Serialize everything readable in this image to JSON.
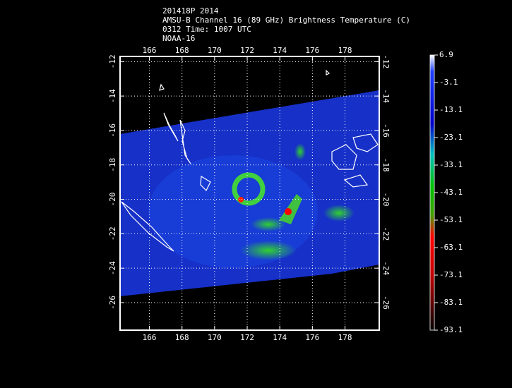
{
  "header": {
    "lines": [
      "201418P 2014",
      "AMSU-B Channel 16 (89 GHz) Brightness Temperature (C)",
      "0312 Time: 1007 UTC",
      "NOAA-16"
    ]
  },
  "map": {
    "xlim": [
      164.2,
      180.1
    ],
    "ylim": [
      -11.7,
      -27.6
    ],
    "xticks": [
      166,
      168,
      170,
      172,
      174,
      176,
      178
    ],
    "yticks": [
      -12,
      -14,
      -16,
      -18,
      -20,
      -22,
      -24,
      -26
    ]
  },
  "colorbar": {
    "lim": [
      6.9,
      -93.1
    ],
    "ticks": [
      6.9,
      -3.1,
      -13.1,
      -23.1,
      -33.1,
      -43.1,
      -53.1,
      -63.1,
      -73.1,
      -83.1,
      -93.1
    ]
  }
}
